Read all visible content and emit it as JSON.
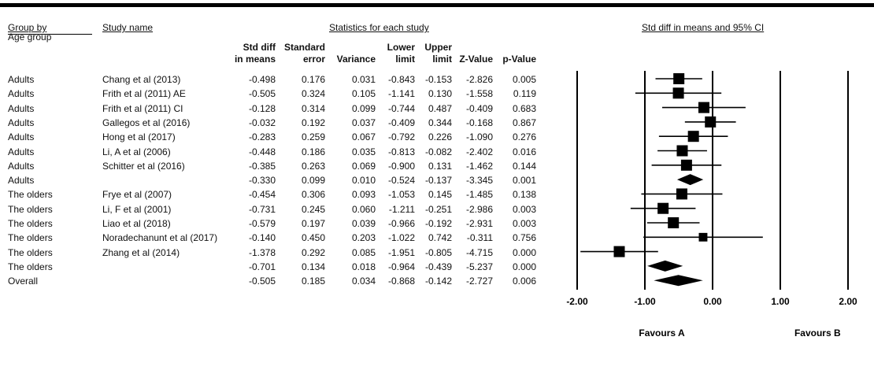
{
  "header": {
    "group_by": "Group by",
    "age_group": "Age group",
    "study_name": "Study name",
    "stats": "Statistics for each study",
    "plot_title": "Std diff in means and 95% CI"
  },
  "columns": [
    [
      "Std diff",
      "in means"
    ],
    [
      "Standard",
      "error"
    ],
    [
      "",
      "Variance"
    ],
    [
      "Lower",
      "limit"
    ],
    [
      "Upper",
      "limit"
    ],
    [
      "",
      "Z-Value"
    ],
    [
      "",
      "p-Value"
    ]
  ],
  "rows": [
    {
      "group": "Adults",
      "study": "Chang et al (2013)",
      "smd": "-0.498",
      "se": "0.176",
      "var": "0.031",
      "lower": "-0.843",
      "upper": "-0.153",
      "z": "-2.826",
      "p": "0.005"
    },
    {
      "group": "Adults",
      "study": "Frith et al (2011) AE",
      "smd": "-0.505",
      "se": "0.324",
      "var": "0.105",
      "lower": "-1.141",
      "upper": "0.130",
      "z": "-1.558",
      "p": "0.119"
    },
    {
      "group": "Adults",
      "study": "Frith et al (2011) CI",
      "smd": "-0.128",
      "se": "0.314",
      "var": "0.099",
      "lower": "-0.744",
      "upper": "0.487",
      "z": "-0.409",
      "p": "0.683"
    },
    {
      "group": "Adults",
      "study": "Gallegos et al (2016)",
      "smd": "-0.032",
      "se": "0.192",
      "var": "0.037",
      "lower": "-0.409",
      "upper": "0.344",
      "z": "-0.168",
      "p": "0.867"
    },
    {
      "group": "Adults",
      "study": "Hong et al (2017)",
      "smd": "-0.283",
      "se": "0.259",
      "var": "0.067",
      "lower": "-0.792",
      "upper": "0.226",
      "z": "-1.090",
      "p": "0.276"
    },
    {
      "group": "Adults",
      "study": "Li, A et al (2006)",
      "smd": "-0.448",
      "se": "0.186",
      "var": "0.035",
      "lower": "-0.813",
      "upper": "-0.082",
      "z": "-2.402",
      "p": "0.016"
    },
    {
      "group": "Adults",
      "study": "Schitter et al (2016)",
      "smd": "-0.385",
      "se": "0.263",
      "var": "0.069",
      "lower": "-0.900",
      "upper": "0.131",
      "z": "-1.462",
      "p": "0.144"
    },
    {
      "group": "Adults",
      "study": "",
      "smd": "-0.330",
      "se": "0.099",
      "var": "0.010",
      "lower": "-0.524",
      "upper": "-0.137",
      "z": "-3.345",
      "p": "0.001"
    },
    {
      "group": "The olders",
      "study": "Frye et al (2007)",
      "smd": "-0.454",
      "se": "0.306",
      "var": "0.093",
      "lower": "-1.053",
      "upper": "0.145",
      "z": "-1.485",
      "p": "0.138"
    },
    {
      "group": "The olders",
      "study": "Li, F et al (2001)",
      "smd": "-0.731",
      "se": "0.245",
      "var": "0.060",
      "lower": "-1.211",
      "upper": "-0.251",
      "z": "-2.986",
      "p": "0.003"
    },
    {
      "group": "The olders",
      "study": "Liao et al (2018)",
      "smd": "-0.579",
      "se": "0.197",
      "var": "0.039",
      "lower": "-0.966",
      "upper": "-0.192",
      "z": "-2.931",
      "p": "0.003"
    },
    {
      "group": "The olders",
      "study": "Noradechanunt et al (2017)",
      "smd": "-0.140",
      "se": "0.450",
      "var": "0.203",
      "lower": "-1.022",
      "upper": "0.742",
      "z": "-0.311",
      "p": "0.756"
    },
    {
      "group": "The olders",
      "study": "Zhang et al (2014)",
      "smd": "-1.378",
      "se": "0.292",
      "var": "0.085",
      "lower": "-1.951",
      "upper": "-0.805",
      "z": "-4.715",
      "p": "0.000"
    },
    {
      "group": "The olders",
      "study": "",
      "smd": "-0.701",
      "se": "0.134",
      "var": "0.018",
      "lower": "-0.964",
      "upper": "-0.439",
      "z": "-5.237",
      "p": "0.000"
    },
    {
      "group": "Overall",
      "study": "",
      "smd": "-0.505",
      "se": "0.185",
      "var": "0.034",
      "lower": "-0.868",
      "upper": "-0.142",
      "z": "-2.727",
      "p": "0.006"
    }
  ],
  "chart_data": {
    "type": "forest",
    "title": "Std diff in means and 95% CI",
    "xlim": [
      -2.0,
      2.0
    ],
    "x_ticks": [
      "-2.00",
      "-1.00",
      "0.00",
      "1.00",
      "2.00"
    ],
    "labels_below": [
      "Favours A",
      "Favours B"
    ],
    "points": [
      {
        "est": -0.498,
        "lo": -0.843,
        "hi": -0.153,
        "kind": "study"
      },
      {
        "est": -0.505,
        "lo": -1.141,
        "hi": 0.13,
        "kind": "study"
      },
      {
        "est": -0.128,
        "lo": -0.744,
        "hi": 0.487,
        "kind": "study"
      },
      {
        "est": -0.032,
        "lo": -0.409,
        "hi": 0.344,
        "kind": "study"
      },
      {
        "est": -0.283,
        "lo": -0.792,
        "hi": 0.226,
        "kind": "study"
      },
      {
        "est": -0.448,
        "lo": -0.813,
        "hi": -0.082,
        "kind": "study"
      },
      {
        "est": -0.385,
        "lo": -0.9,
        "hi": 0.131,
        "kind": "study"
      },
      {
        "est": -0.33,
        "lo": -0.524,
        "hi": -0.137,
        "kind": "summary"
      },
      {
        "est": -0.454,
        "lo": -1.053,
        "hi": 0.145,
        "kind": "study"
      },
      {
        "est": -0.731,
        "lo": -1.211,
        "hi": -0.251,
        "kind": "study"
      },
      {
        "est": -0.579,
        "lo": -0.966,
        "hi": -0.192,
        "kind": "study"
      },
      {
        "est": -0.14,
        "lo": -1.022,
        "hi": 0.742,
        "kind": "study"
      },
      {
        "est": -1.378,
        "lo": -1.951,
        "hi": -0.805,
        "kind": "study"
      },
      {
        "est": -0.701,
        "lo": -0.964,
        "hi": -0.439,
        "kind": "summary"
      },
      {
        "est": -0.505,
        "lo": -0.868,
        "hi": -0.142,
        "kind": "summary"
      }
    ]
  }
}
